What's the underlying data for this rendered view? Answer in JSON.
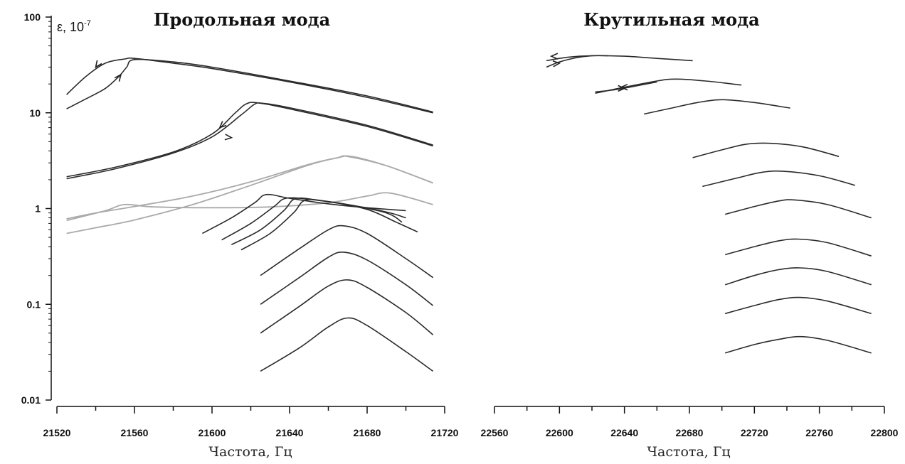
{
  "chart_data": [
    {
      "type": "line",
      "title": "Продольная мода",
      "xlabel": "Частота, Гц",
      "ylabel": "ε, 10",
      "ylabel_exponent": "-7",
      "yscale": "log",
      "xlim": [
        21520,
        21720
      ],
      "ylim": [
        0.01,
        100
      ],
      "xticks": [
        "21520",
        "21560",
        "21600",
        "21640",
        "21680",
        "21720"
      ],
      "yticks": [
        "100",
        "10",
        "1",
        "0.1",
        "0.01"
      ],
      "grid": false,
      "series_color": "#2a2a2a",
      "series_secondary_color": "#aaaaaa",
      "series": [
        {
          "style": "dark",
          "x": [
            21525,
            21535,
            21545,
            21555,
            21560,
            21580,
            21600,
            21640,
            21680,
            21714
          ],
          "y": [
            15.5,
            24,
            33,
            36.5,
            37,
            33,
            29,
            21,
            14.5,
            10
          ]
        },
        {
          "style": "dark",
          "x": [
            21525,
            21535,
            21545,
            21552,
            21556,
            21560,
            21580,
            21600,
            21640,
            21680,
            21714
          ],
          "y": [
            11,
            14,
            18,
            24,
            30,
            36,
            34,
            30,
            21.5,
            15,
            10.2
          ]
        },
        {
          "style": "dark",
          "x": [
            21525,
            21550,
            21580,
            21600,
            21615,
            21622,
            21626,
            21640,
            21680,
            21714
          ],
          "y": [
            2.05,
            2.6,
            3.8,
            5.6,
            9.5,
            12.3,
            12.5,
            11,
            7.2,
            4.5
          ]
        },
        {
          "style": "dark",
          "x": [
            21525,
            21550,
            21580,
            21600,
            21612,
            21618,
            21624,
            21640,
            21680,
            21714
          ],
          "y": [
            2.15,
            2.7,
            3.9,
            6.0,
            10,
            12.5,
            12.7,
            11.3,
            7.4,
            4.6
          ]
        },
        {
          "style": "light",
          "x": [
            21525,
            21540,
            21560,
            21590,
            21620,
            21650,
            21665,
            21672,
            21690,
            21714
          ],
          "y": [
            0.78,
            0.9,
            1.05,
            1.35,
            1.9,
            2.9,
            3.4,
            3.5,
            2.8,
            1.85
          ]
        },
        {
          "style": "light",
          "x": [
            21525,
            21540,
            21560,
            21590,
            21620,
            21650,
            21665,
            21670,
            21690,
            21714
          ],
          "y": [
            0.55,
            0.63,
            0.76,
            1.1,
            1.75,
            2.85,
            3.4,
            3.5,
            2.8,
            1.85
          ]
        },
        {
          "style": "light",
          "x": [
            21525,
            21545,
            21555,
            21570,
            21600,
            21630,
            21660,
            21680,
            21692,
            21714
          ],
          "y": [
            0.75,
            0.95,
            1.1,
            1.04,
            1.02,
            1.04,
            1.15,
            1.35,
            1.45,
            1.1
          ]
        },
        {
          "style": "dark",
          "x": [
            21595,
            21610,
            21622,
            21628,
            21640,
            21660,
            21680,
            21700
          ],
          "y": [
            0.55,
            0.8,
            1.15,
            1.4,
            1.28,
            1.12,
            1.02,
            0.95
          ]
        },
        {
          "style": "dark",
          "x": [
            21605,
            21620,
            21632,
            21638,
            21650,
            21670,
            21690,
            21700
          ],
          "y": [
            0.47,
            0.7,
            1.05,
            1.28,
            1.25,
            1.1,
            0.92,
            0.8
          ]
        },
        {
          "style": "dark",
          "x": [
            21610,
            21625,
            21637,
            21643,
            21655,
            21670,
            21690,
            21698
          ],
          "y": [
            0.42,
            0.6,
            0.95,
            1.27,
            1.22,
            1.1,
            0.9,
            0.72
          ]
        },
        {
          "style": "dark",
          "x": [
            21615,
            21630,
            21642,
            21648,
            21660,
            21680,
            21695,
            21706
          ],
          "y": [
            0.37,
            0.55,
            0.9,
            1.22,
            1.18,
            0.98,
            0.72,
            0.57
          ]
        },
        {
          "style": "dark",
          "x": [
            21625,
            21645,
            21660,
            21668,
            21680,
            21700,
            21714
          ],
          "y": [
            0.2,
            0.38,
            0.6,
            0.66,
            0.55,
            0.3,
            0.19
          ]
        },
        {
          "style": "dark",
          "x": [
            21625,
            21645,
            21660,
            21668,
            21680,
            21700,
            21714
          ],
          "y": [
            0.1,
            0.19,
            0.31,
            0.35,
            0.29,
            0.16,
            0.097
          ]
        },
        {
          "style": "dark",
          "x": [
            21625,
            21645,
            21660,
            21670,
            21680,
            21700,
            21714
          ],
          "y": [
            0.05,
            0.095,
            0.155,
            0.18,
            0.15,
            0.082,
            0.048
          ]
        },
        {
          "style": "dark",
          "x": [
            21625,
            21645,
            21660,
            21670,
            21680,
            21700,
            21714
          ],
          "y": [
            0.02,
            0.035,
            0.058,
            0.072,
            0.06,
            0.032,
            0.02
          ]
        }
      ]
    },
    {
      "type": "line",
      "title": "Крутильная мода",
      "xlabel": "Частота, Гц",
      "xlim": [
        22560,
        22800
      ],
      "ylim": [
        0.01,
        100
      ],
      "yscale": "log",
      "xticks": [
        "22560",
        "22600",
        "22640",
        "22680",
        "22720",
        "22760",
        "22800"
      ],
      "grid": false,
      "series_color": "#2a2a2a",
      "series": [
        {
          "style": "dark",
          "x": [
            22592,
            22605,
            22620,
            22640,
            22660,
            22682
          ],
          "y": [
            35,
            38,
            39.5,
            39,
            37,
            35
          ]
        },
        {
          "style": "dark",
          "x": [
            22592,
            22600,
            22610,
            22620,
            22630
          ],
          "y": [
            30,
            34,
            37.5,
            39.5,
            39.5
          ]
        },
        {
          "style": "dark",
          "x": [
            22622,
            22640,
            22660,
            22672,
            22690,
            22712
          ],
          "y": [
            16,
            18.5,
            21.5,
            22.5,
            21.5,
            19.5
          ]
        },
        {
          "style": "dark",
          "x": [
            22622,
            22635,
            22650,
            22660
          ],
          "y": [
            16.5,
            17.5,
            19.5,
            21
          ]
        },
        {
          "style": "dark",
          "x": [
            22652,
            22670,
            22685,
            22700,
            22720,
            22742
          ],
          "y": [
            9.7,
            11.3,
            12.8,
            13.7,
            12.8,
            11.2
          ]
        },
        {
          "style": "dark",
          "x": [
            22682,
            22700,
            22715,
            22730,
            22750,
            22772
          ],
          "y": [
            3.4,
            4.1,
            4.7,
            4.8,
            4.4,
            3.5
          ]
        },
        {
          "style": "dark",
          "x": [
            22688,
            22710,
            22725,
            22738,
            22760,
            22782
          ],
          "y": [
            1.7,
            2.1,
            2.4,
            2.45,
            2.2,
            1.75
          ]
        },
        {
          "style": "dark",
          "x": [
            22702,
            22720,
            22735,
            22745,
            22765,
            22792
          ],
          "y": [
            0.87,
            1.05,
            1.2,
            1.23,
            1.1,
            0.8
          ]
        },
        {
          "style": "dark",
          "x": [
            22702,
            22720,
            22735,
            22747,
            22765,
            22792
          ],
          "y": [
            0.33,
            0.4,
            0.46,
            0.48,
            0.44,
            0.32
          ]
        },
        {
          "style": "dark",
          "x": [
            22702,
            22720,
            22735,
            22748,
            22765,
            22792
          ],
          "y": [
            0.16,
            0.2,
            0.23,
            0.24,
            0.22,
            0.16
          ]
        },
        {
          "style": "dark",
          "x": [
            22702,
            22720,
            22735,
            22748,
            22765,
            22792
          ],
          "y": [
            0.08,
            0.097,
            0.112,
            0.118,
            0.108,
            0.08
          ]
        },
        {
          "style": "dark",
          "x": [
            22702,
            22720,
            22735,
            22748,
            22765,
            22792
          ],
          "y": [
            0.031,
            0.038,
            0.043,
            0.046,
            0.042,
            0.031
          ]
        }
      ]
    }
  ]
}
